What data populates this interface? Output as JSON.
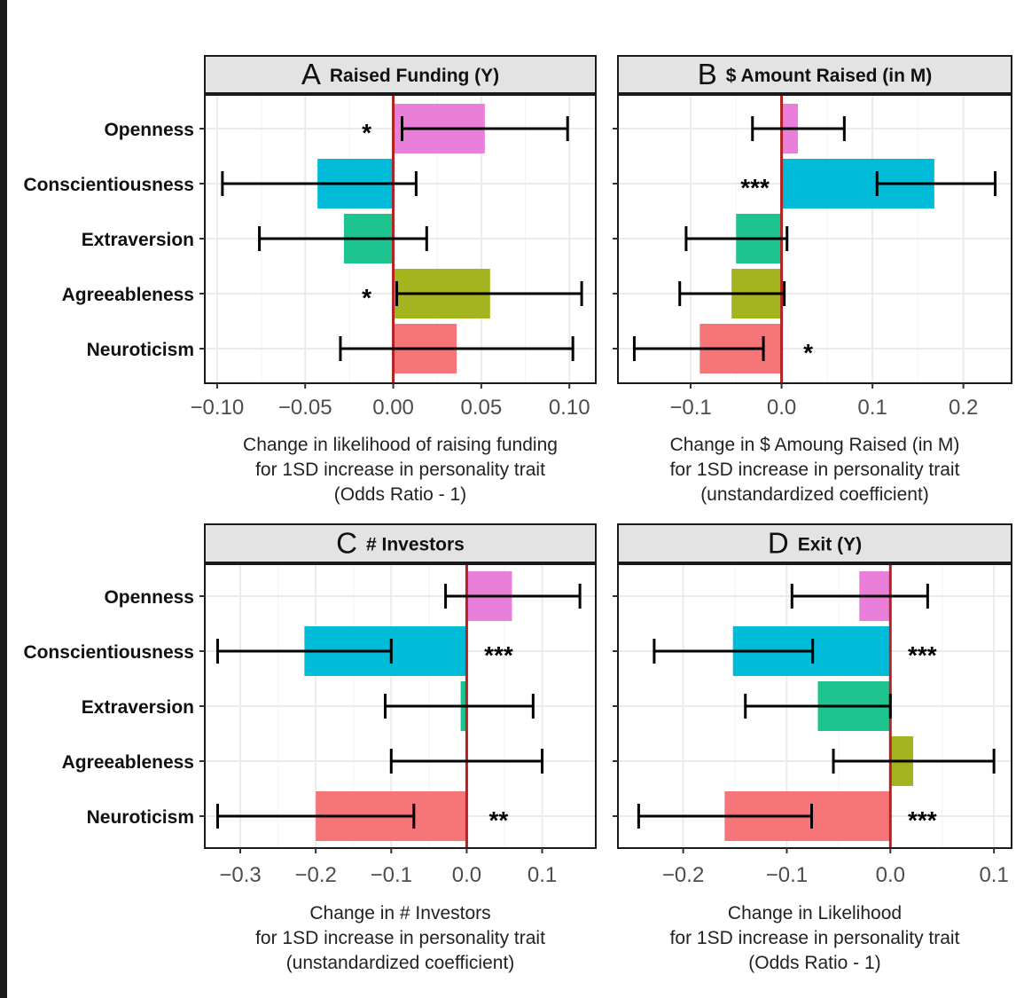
{
  "chart_data": [
    {
      "type": "bar",
      "orientation": "horizontal",
      "panel_letter": "A",
      "title": "Raised Funding (Y)",
      "categories": [
        "Openness",
        "Conscientiousness",
        "Extraversion",
        "Agreeableness",
        "Neuroticism"
      ],
      "values": [
        0.052,
        -0.043,
        -0.028,
        0.055,
        0.036
      ],
      "ci_low": [
        0.005,
        -0.097,
        -0.076,
        0.002,
        -0.03
      ],
      "ci_high": [
        0.099,
        0.013,
        0.019,
        0.107,
        0.102
      ],
      "significance": [
        "*",
        "",
        "",
        "*",
        ""
      ],
      "colors": [
        "#EA7FD9",
        "#00BCD8",
        "#1DC48F",
        "#A3B41F",
        "#F67578"
      ],
      "xlim": [
        -0.107,
        0.115
      ],
      "xticks": [
        -0.1,
        -0.05,
        0.0,
        0.05,
        0.1
      ],
      "xtick_labels": [
        "−0.10",
        "−0.05",
        "0.00",
        "0.05",
        "0.10"
      ],
      "xlabel": [
        "Change in likelihood of raising funding",
        "for 1SD increase in personality trait",
        "(Odds Ratio - 1)"
      ]
    },
    {
      "type": "bar",
      "orientation": "horizontal",
      "panel_letter": "B",
      "title": "$ Amount Raised (in M)",
      "categories": [
        "Openness",
        "Conscientiousness",
        "Extraversion",
        "Agreeableness",
        "Neuroticism"
      ],
      "values": [
        0.018,
        0.168,
        -0.05,
        -0.055,
        -0.09
      ],
      "ci_low": [
        -0.032,
        0.105,
        -0.105,
        -0.112,
        -0.162
      ],
      "ci_high": [
        0.069,
        0.235,
        0.006,
        0.003,
        -0.02
      ],
      "significance": [
        "",
        "***",
        "",
        "",
        "*"
      ],
      "colors": [
        "#EA7FD9",
        "#00BCD8",
        "#1DC48F",
        "#A3B41F",
        "#F67578"
      ],
      "xlim": [
        -0.18,
        0.253
      ],
      "xticks": [
        -0.1,
        0.0,
        0.1,
        0.2
      ],
      "xtick_labels": [
        "−0.1",
        "0.0",
        "0.1",
        "0.2"
      ],
      "xlabel": [
        "Change in $ Amoung Raised (in M)",
        "for 1SD increase in personality trait",
        "(unstandardized coefficient)"
      ]
    },
    {
      "type": "bar",
      "orientation": "horizontal",
      "panel_letter": "C",
      "title": "# Investors",
      "categories": [
        "Openness",
        "Conscientiousness",
        "Extraversion",
        "Agreeableness",
        "Neuroticism"
      ],
      "values": [
        0.06,
        -0.215,
        -0.008,
        0.0,
        -0.2
      ],
      "ci_low": [
        -0.028,
        -0.33,
        -0.108,
        -0.1,
        -0.33
      ],
      "ci_high": [
        0.15,
        -0.1,
        0.088,
        0.1,
        -0.07
      ],
      "significance": [
        "",
        "***",
        "",
        "",
        "**"
      ],
      "colors": [
        "#EA7FD9",
        "#00BCD8",
        "#1DC48F",
        "#A3B41F",
        "#F67578"
      ],
      "xlim": [
        -0.347,
        0.171
      ],
      "xticks": [
        -0.3,
        -0.2,
        -0.1,
        0.0,
        0.1
      ],
      "xtick_labels": [
        "−0.3",
        "−0.2",
        "−0.1",
        "0.0",
        "0.1"
      ],
      "xlabel": [
        "Change in # Investors",
        "for 1SD increase in personality trait",
        "(unstandardized coefficient)"
      ]
    },
    {
      "type": "bar",
      "orientation": "horizontal",
      "panel_letter": "D",
      "title": "Exit (Y)",
      "categories": [
        "Openness",
        "Conscientiousness",
        "Extraversion",
        "Agreeableness",
        "Neuroticism"
      ],
      "values": [
        -0.03,
        -0.152,
        -0.07,
        0.022,
        -0.16
      ],
      "ci_low": [
        -0.095,
        -0.228,
        -0.14,
        -0.055,
        -0.243
      ],
      "ci_high": [
        0.036,
        -0.075,
        0.0,
        0.1,
        -0.076
      ],
      "significance": [
        "",
        "***",
        "",
        "",
        "***"
      ],
      "colors": [
        "#EA7FD9",
        "#00BCD8",
        "#1DC48F",
        "#A3B41F",
        "#F67578"
      ],
      "xlim": [
        -0.263,
        0.117
      ],
      "xticks": [
        -0.2,
        -0.1,
        0.0,
        0.1
      ],
      "xtick_labels": [
        "−0.2",
        "−0.1",
        "0.0",
        "0.1"
      ],
      "xlabel": [
        "Change in Likelihood",
        "for 1SD increase in personality trait",
        "(Odds Ratio - 1)"
      ]
    }
  ],
  "colors": {
    "zero_line": "#B22222",
    "header_fill": "#E3E3E3",
    "grid": "#EBEBEB",
    "axis_text": "#4D4D4D"
  }
}
